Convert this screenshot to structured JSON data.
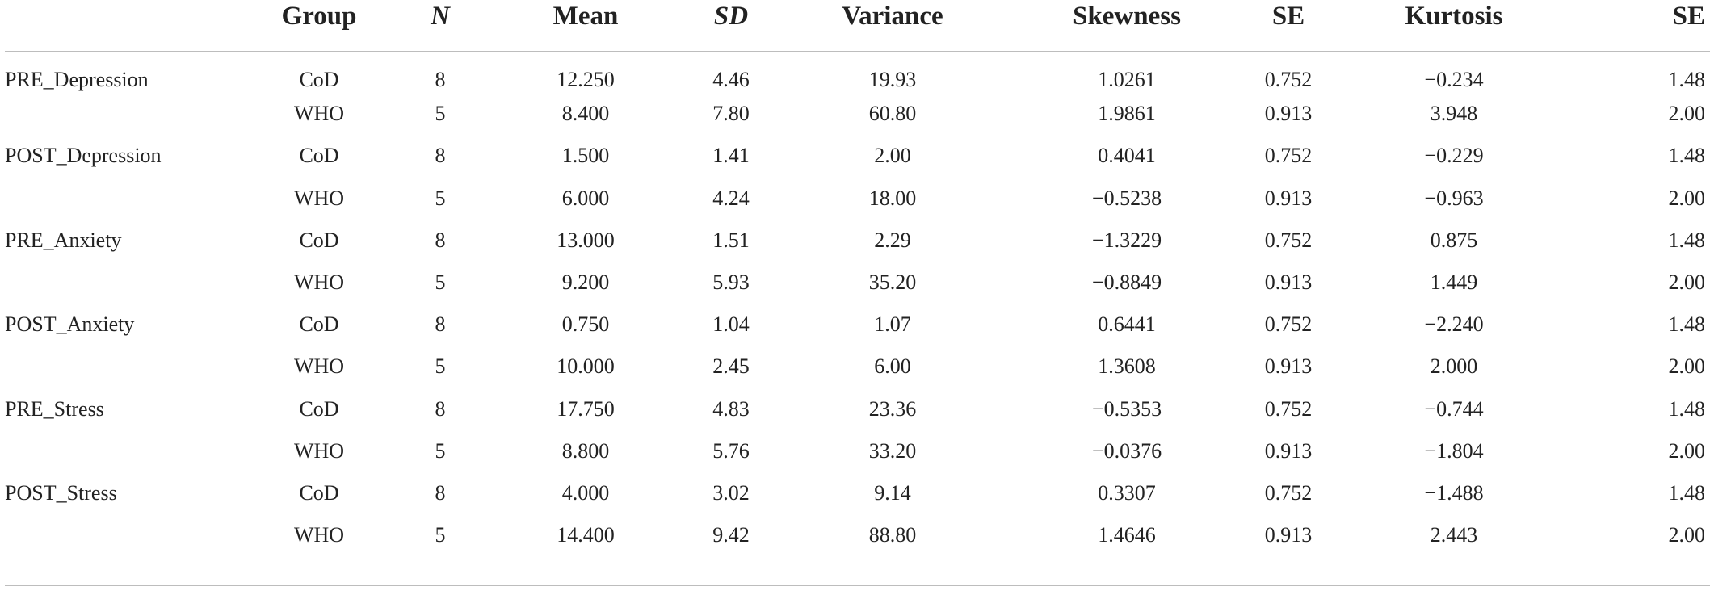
{
  "table": {
    "headers": {
      "variable": "",
      "group": "Group",
      "n": "N",
      "mean": "Mean",
      "sd": "SD",
      "variance": "Variance",
      "skewness": "Skewness",
      "se_skew": "SE",
      "kurtosis": "Kurtosis",
      "se_kurt": "SE"
    },
    "rows": [
      {
        "variable": "PRE_Depression",
        "group": "CoD",
        "n": "8",
        "mean": "12.250",
        "sd": "4.46",
        "variance": "19.93",
        "skewness": "1.0261",
        "se_skew": "0.752",
        "kurtosis": "−0.234",
        "se_kurt": "1.48"
      },
      {
        "variable": "",
        "group": "WHO",
        "n": "5",
        "mean": "8.400",
        "sd": "7.80",
        "variance": "60.80",
        "skewness": "1.9861",
        "se_skew": "0.913",
        "kurtosis": "3.948",
        "se_kurt": "2.00"
      },
      {
        "variable": "POST_Depression",
        "group": "CoD",
        "n": "8",
        "mean": "1.500",
        "sd": "1.41",
        "variance": "2.00",
        "skewness": "0.4041",
        "se_skew": "0.752",
        "kurtosis": "−0.229",
        "se_kurt": "1.48"
      },
      {
        "variable": "",
        "group": "WHO",
        "n": "5",
        "mean": "6.000",
        "sd": "4.24",
        "variance": "18.00",
        "skewness": "−0.5238",
        "se_skew": "0.913",
        "kurtosis": "−0.963",
        "se_kurt": "2.00"
      },
      {
        "variable": "PRE_Anxiety",
        "group": "CoD",
        "n": "8",
        "mean": "13.000",
        "sd": "1.51",
        "variance": "2.29",
        "skewness": "−1.3229",
        "se_skew": "0.752",
        "kurtosis": "0.875",
        "se_kurt": "1.48"
      },
      {
        "variable": "",
        "group": "WHO",
        "n": "5",
        "mean": "9.200",
        "sd": "5.93",
        "variance": "35.20",
        "skewness": "−0.8849",
        "se_skew": "0.913",
        "kurtosis": "1.449",
        "se_kurt": "2.00"
      },
      {
        "variable": "POST_Anxiety",
        "group": "CoD",
        "n": "8",
        "mean": "0.750",
        "sd": "1.04",
        "variance": "1.07",
        "skewness": "0.6441",
        "se_skew": "0.752",
        "kurtosis": "−2.240",
        "se_kurt": "1.48"
      },
      {
        "variable": "",
        "group": "WHO",
        "n": "5",
        "mean": "10.000",
        "sd": "2.45",
        "variance": "6.00",
        "skewness": "1.3608",
        "se_skew": "0.913",
        "kurtosis": "2.000",
        "se_kurt": "2.00"
      },
      {
        "variable": "PRE_Stress",
        "group": "CoD",
        "n": "8",
        "mean": "17.750",
        "sd": "4.83",
        "variance": "23.36",
        "skewness": "−0.5353",
        "se_skew": "0.752",
        "kurtosis": "−0.744",
        "se_kurt": "1.48"
      },
      {
        "variable": "",
        "group": "WHO",
        "n": "5",
        "mean": "8.800",
        "sd": "5.76",
        "variance": "33.20",
        "skewness": "−0.0376",
        "se_skew": "0.913",
        "kurtosis": "−1.804",
        "se_kurt": "2.00"
      },
      {
        "variable": "POST_Stress",
        "group": "CoD",
        "n": "8",
        "mean": "4.000",
        "sd": "3.02",
        "variance": "9.14",
        "skewness": "0.3307",
        "se_skew": "0.752",
        "kurtosis": "−1.488",
        "se_kurt": "1.48"
      },
      {
        "variable": "",
        "group": "WHO",
        "n": "5",
        "mean": "14.400",
        "sd": "9.42",
        "variance": "88.80",
        "skewness": "1.4646",
        "se_skew": "0.913",
        "kurtosis": "2.443",
        "se_kurt": "2.00"
      }
    ]
  }
}
